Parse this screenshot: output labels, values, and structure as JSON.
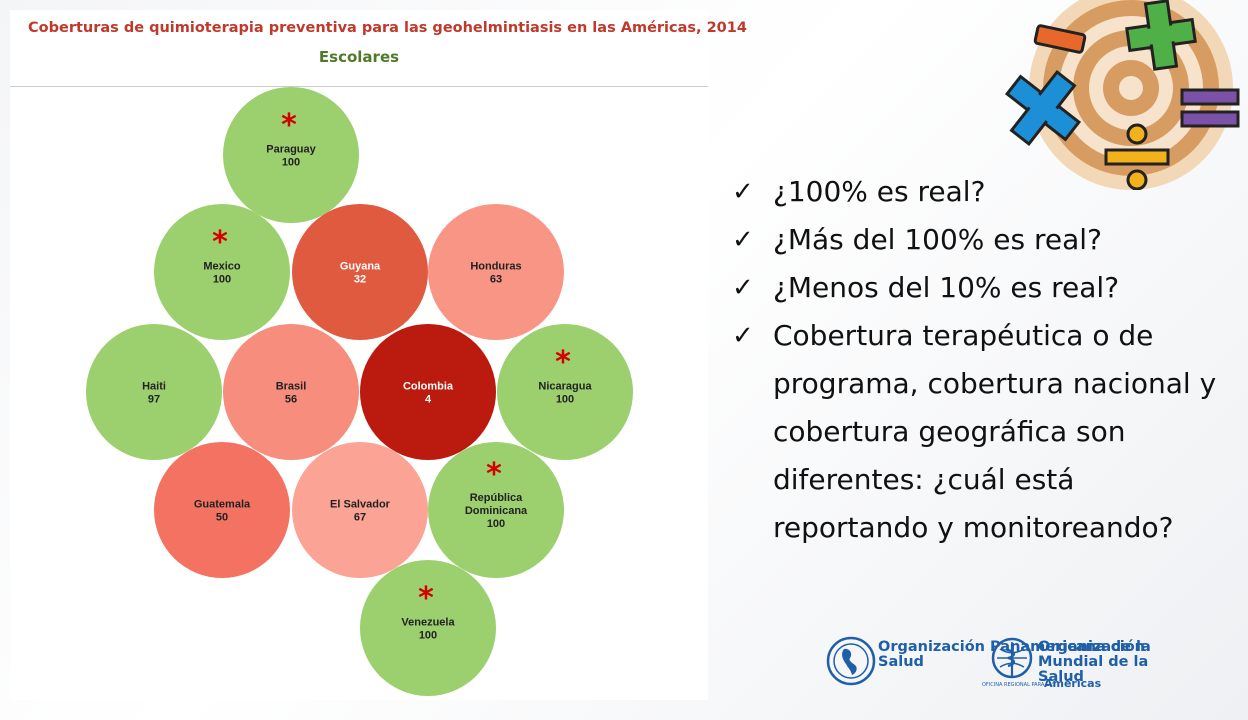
{
  "chart_data": {
    "type": "bubble",
    "title": "Coberturas de quimioterapia preventiva para las geohelmintiasis en las Américas, 2014",
    "subtitle": "Escolares",
    "points": [
      {
        "name": "Paraguay",
        "value": 100,
        "asterisk": true,
        "color": "#9ccf6e"
      },
      {
        "name": "Mexico",
        "value": 100,
        "asterisk": true,
        "color": "#9ccf6e"
      },
      {
        "name": "Guyana",
        "value": 32,
        "asterisk": false,
        "color": "#e05a40"
      },
      {
        "name": "Honduras",
        "value": 63,
        "asterisk": false,
        "color": "#f99585"
      },
      {
        "name": "Haiti",
        "value": 97,
        "asterisk": false,
        "color": "#9ccf6e"
      },
      {
        "name": "Brasil",
        "value": 56,
        "asterisk": false,
        "color": "#f78d7c"
      },
      {
        "name": "Colombia",
        "value": 4,
        "asterisk": false,
        "color": "#bb1a0e"
      },
      {
        "name": "Nicaragua",
        "value": 100,
        "asterisk": true,
        "color": "#9ccf6e"
      },
      {
        "name": "Guatemala",
        "value": 50,
        "asterisk": false,
        "color": "#f47262"
      },
      {
        "name": "El Salvador",
        "value": 67,
        "asterisk": false,
        "color": "#fba394"
      },
      {
        "name": "República Dominicana",
        "value": 100,
        "asterisk": true,
        "color": "#9ccf6e"
      },
      {
        "name": "Venezuela",
        "value": 100,
        "asterisk": true,
        "color": "#9ccf6e"
      }
    ],
    "asterisk_symbol": "*"
  },
  "questions": [
    "¿100% es real?",
    "¿Más del 100% es real?",
    "¿Menos del 10% es real?",
    "Cobertura terapéutica o de programa, cobertura nacional y cobertura geográfica son diferentes: ¿cuál está reportando y monitoreando?"
  ],
  "check_symbol": "✓",
  "logos": {
    "paho": "Organización Panamericana de la Salud",
    "who": "Organización Mundial de la Salud",
    "who_sub": "OFICINA REGIONAL PARA LAS",
    "who_region": "Américas"
  },
  "icons": {
    "math_logo": "math-symbols-spiral-icon",
    "paho_emblem": "paho-globe-emblem-icon",
    "who_emblem": "who-emblem-icon",
    "check": "check-icon"
  },
  "colors": {
    "title": "#c0392b",
    "subtitle": "#4f7a2a",
    "org_blue": "#1f5fa8"
  }
}
